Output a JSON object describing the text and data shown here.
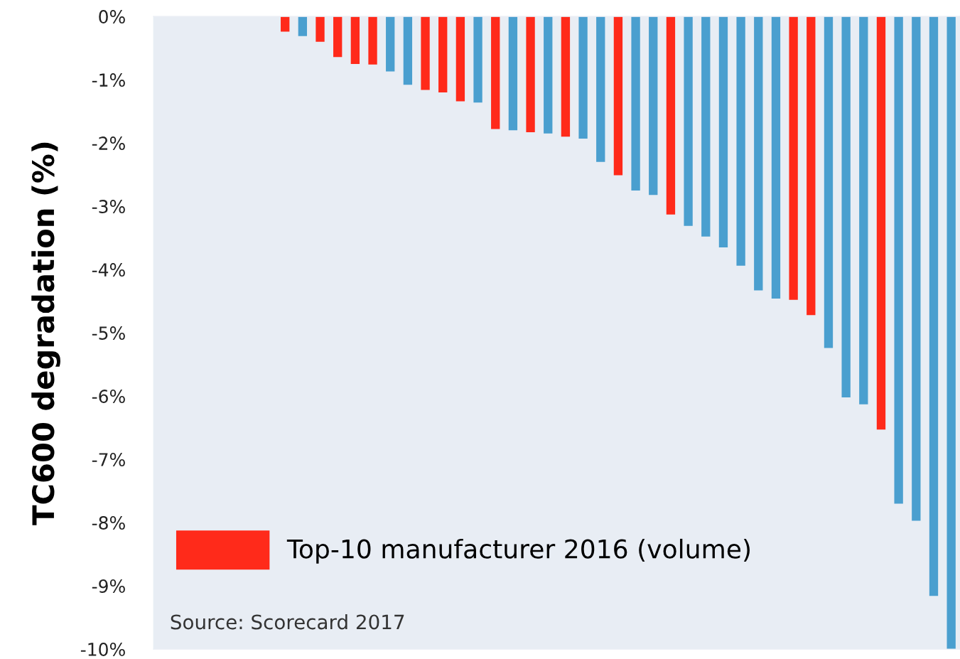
{
  "chart_data": {
    "type": "bar",
    "ylabel": "TC600 degradation (%)",
    "categories": [
      null,
      null,
      null,
      null,
      null,
      null,
      null,
      null,
      null,
      null,
      null,
      null,
      null,
      null,
      null,
      null,
      null,
      null,
      null,
      null,
      null,
      null,
      null,
      null,
      null,
      null,
      null,
      null,
      null,
      null,
      null,
      null,
      null,
      null,
      null,
      null,
      null,
      null,
      null,
      null,
      null,
      null,
      null,
      null,
      null,
      null
    ],
    "series": [
      {
        "color": "#4a9fcf",
        "values": [
          0,
          0,
          0,
          0,
          0,
          0,
          0,
          null,
          -0.31,
          null,
          null,
          null,
          null,
          -0.87,
          -1.08,
          null,
          null,
          null,
          -1.36,
          null,
          -1.8,
          null,
          -1.85,
          null,
          -1.93,
          -2.3,
          null,
          -2.75,
          -2.82,
          null,
          -3.31,
          -3.48,
          -3.65,
          -3.94,
          -4.33,
          -4.46,
          null,
          null,
          -5.24,
          -6.02,
          -6.13,
          null,
          -7.7,
          -7.97,
          -9.16,
          -10.0
        ]
      },
      {
        "name": "Top-10 manufacturer 2016 (volume)",
        "color": "#ff2a1a",
        "values": [
          null,
          null,
          null,
          null,
          null,
          null,
          null,
          -0.24,
          null,
          -0.4,
          -0.64,
          -0.75,
          -0.76,
          null,
          null,
          -1.16,
          -1.2,
          -1.34,
          null,
          -1.78,
          null,
          -1.83,
          null,
          -1.9,
          null,
          null,
          -2.51,
          null,
          null,
          -3.13,
          null,
          null,
          null,
          null,
          null,
          null,
          -4.48,
          -4.72,
          null,
          null,
          null,
          -6.53,
          null,
          null,
          null,
          null
        ]
      }
    ],
    "ylim": [
      -10,
      0
    ],
    "yticks": [
      {
        "value": 0,
        "label": "0%"
      },
      {
        "value": -1,
        "label": "-1%"
      },
      {
        "value": -2,
        "label": "-2%"
      },
      {
        "value": -3,
        "label": "-3%"
      },
      {
        "value": -4,
        "label": "-4%"
      },
      {
        "value": -5,
        "label": "-5%"
      },
      {
        "value": -6,
        "label": "-6%"
      },
      {
        "value": -7,
        "label": "-7%"
      },
      {
        "value": -8,
        "label": "-8%"
      },
      {
        "value": -9,
        "label": "-9%"
      },
      {
        "value": -10,
        "label": "-10%"
      }
    ],
    "tick_labels": "y",
    "grid": false,
    "legend": "bottom left",
    "annotations": [
      "Source: Scorecard 2017"
    ]
  }
}
